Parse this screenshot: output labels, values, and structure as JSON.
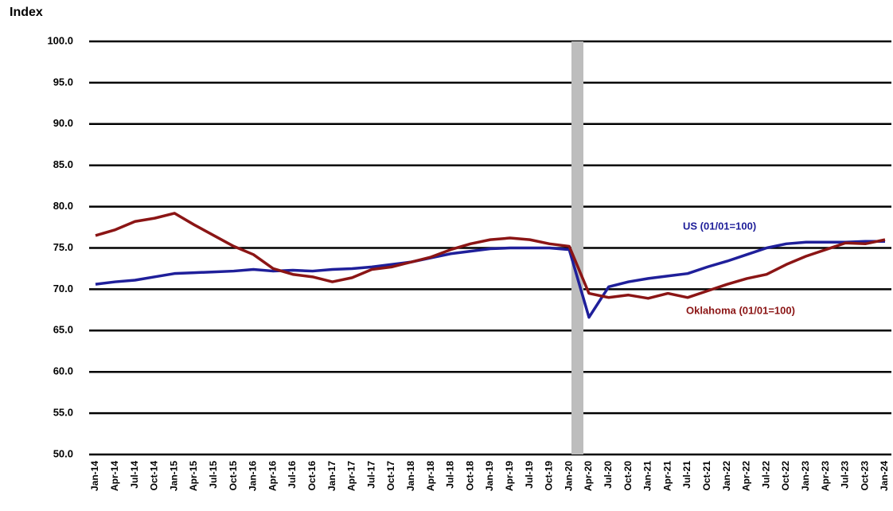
{
  "chart_data": {
    "type": "line",
    "y_axis_label": "Index",
    "categories": [
      "Jan-14",
      "Apr-14",
      "Jul-14",
      "Oct-14",
      "Jan-15",
      "Apr-15",
      "Jul-15",
      "Oct-15",
      "Jan-16",
      "Apr-16",
      "Jul-16",
      "Oct-16",
      "Jan-17",
      "Apr-17",
      "Jul-17",
      "Oct-17",
      "Jan-18",
      "Apr-18",
      "Jul-18",
      "Oct-18",
      "Jan-19",
      "Apr-19",
      "Jul-19",
      "Oct-19",
      "Jan-20",
      "Apr-20",
      "Jul-20",
      "Oct-20",
      "Jan-21",
      "Apr-21",
      "Jul-21",
      "Oct-21",
      "Jan-22",
      "Apr-22",
      "Jul-22",
      "Oct-22",
      "Jan-23",
      "Apr-23",
      "Jul-23",
      "Oct-23",
      "Jan-24"
    ],
    "series": [
      {
        "name": "US (01/01=100)",
        "color": "#1f1f9a",
        "values": [
          70.6,
          70.9,
          71.1,
          71.5,
          71.9,
          72.0,
          72.1,
          72.2,
          72.4,
          72.2,
          72.3,
          72.2,
          72.4,
          72.5,
          72.7,
          73.0,
          73.3,
          73.8,
          74.3,
          74.6,
          74.9,
          75.0,
          75.0,
          75.0,
          74.8,
          66.6,
          70.3,
          70.9,
          71.3,
          71.6,
          71.9,
          72.7,
          73.4,
          74.2,
          75.0,
          75.5,
          75.7,
          75.7,
          75.7,
          75.8,
          75.8
        ]
      },
      {
        "name": "Oklahoma (01/01=100)",
        "color": "#8b1515",
        "values": [
          76.5,
          77.2,
          78.2,
          78.6,
          79.2,
          77.8,
          76.5,
          75.2,
          74.2,
          72.5,
          71.8,
          71.5,
          70.9,
          71.4,
          72.4,
          72.7,
          73.3,
          73.9,
          74.8,
          75.5,
          76.0,
          76.2,
          76.0,
          75.5,
          75.2,
          69.5,
          69.0,
          69.3,
          68.9,
          69.5,
          69.0,
          69.8,
          70.6,
          71.3,
          71.8,
          73.0,
          74.0,
          74.8,
          75.6,
          75.5,
          76.0
        ]
      }
    ],
    "ylim": [
      50,
      100
    ],
    "yticks": [
      {
        "value": 50,
        "label": "50.0"
      },
      {
        "value": 55,
        "label": "55.0"
      },
      {
        "value": 60,
        "label": "60.0"
      },
      {
        "value": 65,
        "label": "65.0"
      },
      {
        "value": 70,
        "label": "70.0"
      },
      {
        "value": 75,
        "label": "75.0"
      },
      {
        "value": 80,
        "label": "80.0"
      },
      {
        "value": 85,
        "label": "85.0"
      },
      {
        "value": 90,
        "label": "90.0"
      },
      {
        "value": 95,
        "label": "95.0"
      },
      {
        "value": 100,
        "label": "100.0"
      }
    ],
    "grid": true
  }
}
